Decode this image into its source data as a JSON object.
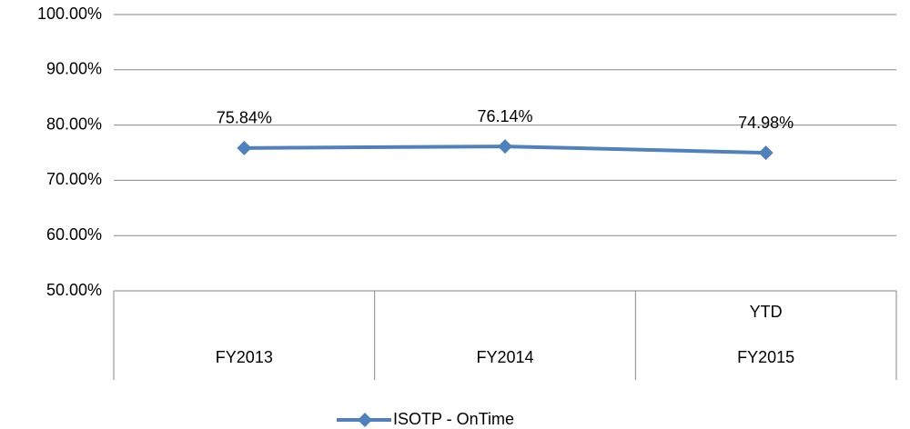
{
  "chart_data": {
    "type": "line",
    "categories": [
      "FY2013",
      "FY2014",
      "YTD FY2015"
    ],
    "series": [
      {
        "name": "ISOTP - OnTime",
        "color": "#4f81bd",
        "values": [
          75.84,
          76.14,
          74.98
        ],
        "value_labels": [
          "75.84%",
          "76.14%",
          "74.98%"
        ]
      }
    ],
    "ylim": [
      50,
      100
    ],
    "yticks": [
      {
        "value": 50,
        "label": "50.00%"
      },
      {
        "value": 60,
        "label": "60.00%"
      },
      {
        "value": 70,
        "label": "70.00%"
      },
      {
        "value": 80,
        "label": "80.00%"
      },
      {
        "value": 90,
        "label": "90.00%"
      },
      {
        "value": 100,
        "label": "100.00%"
      }
    ],
    "grid": true,
    "legend": "bottom"
  }
}
